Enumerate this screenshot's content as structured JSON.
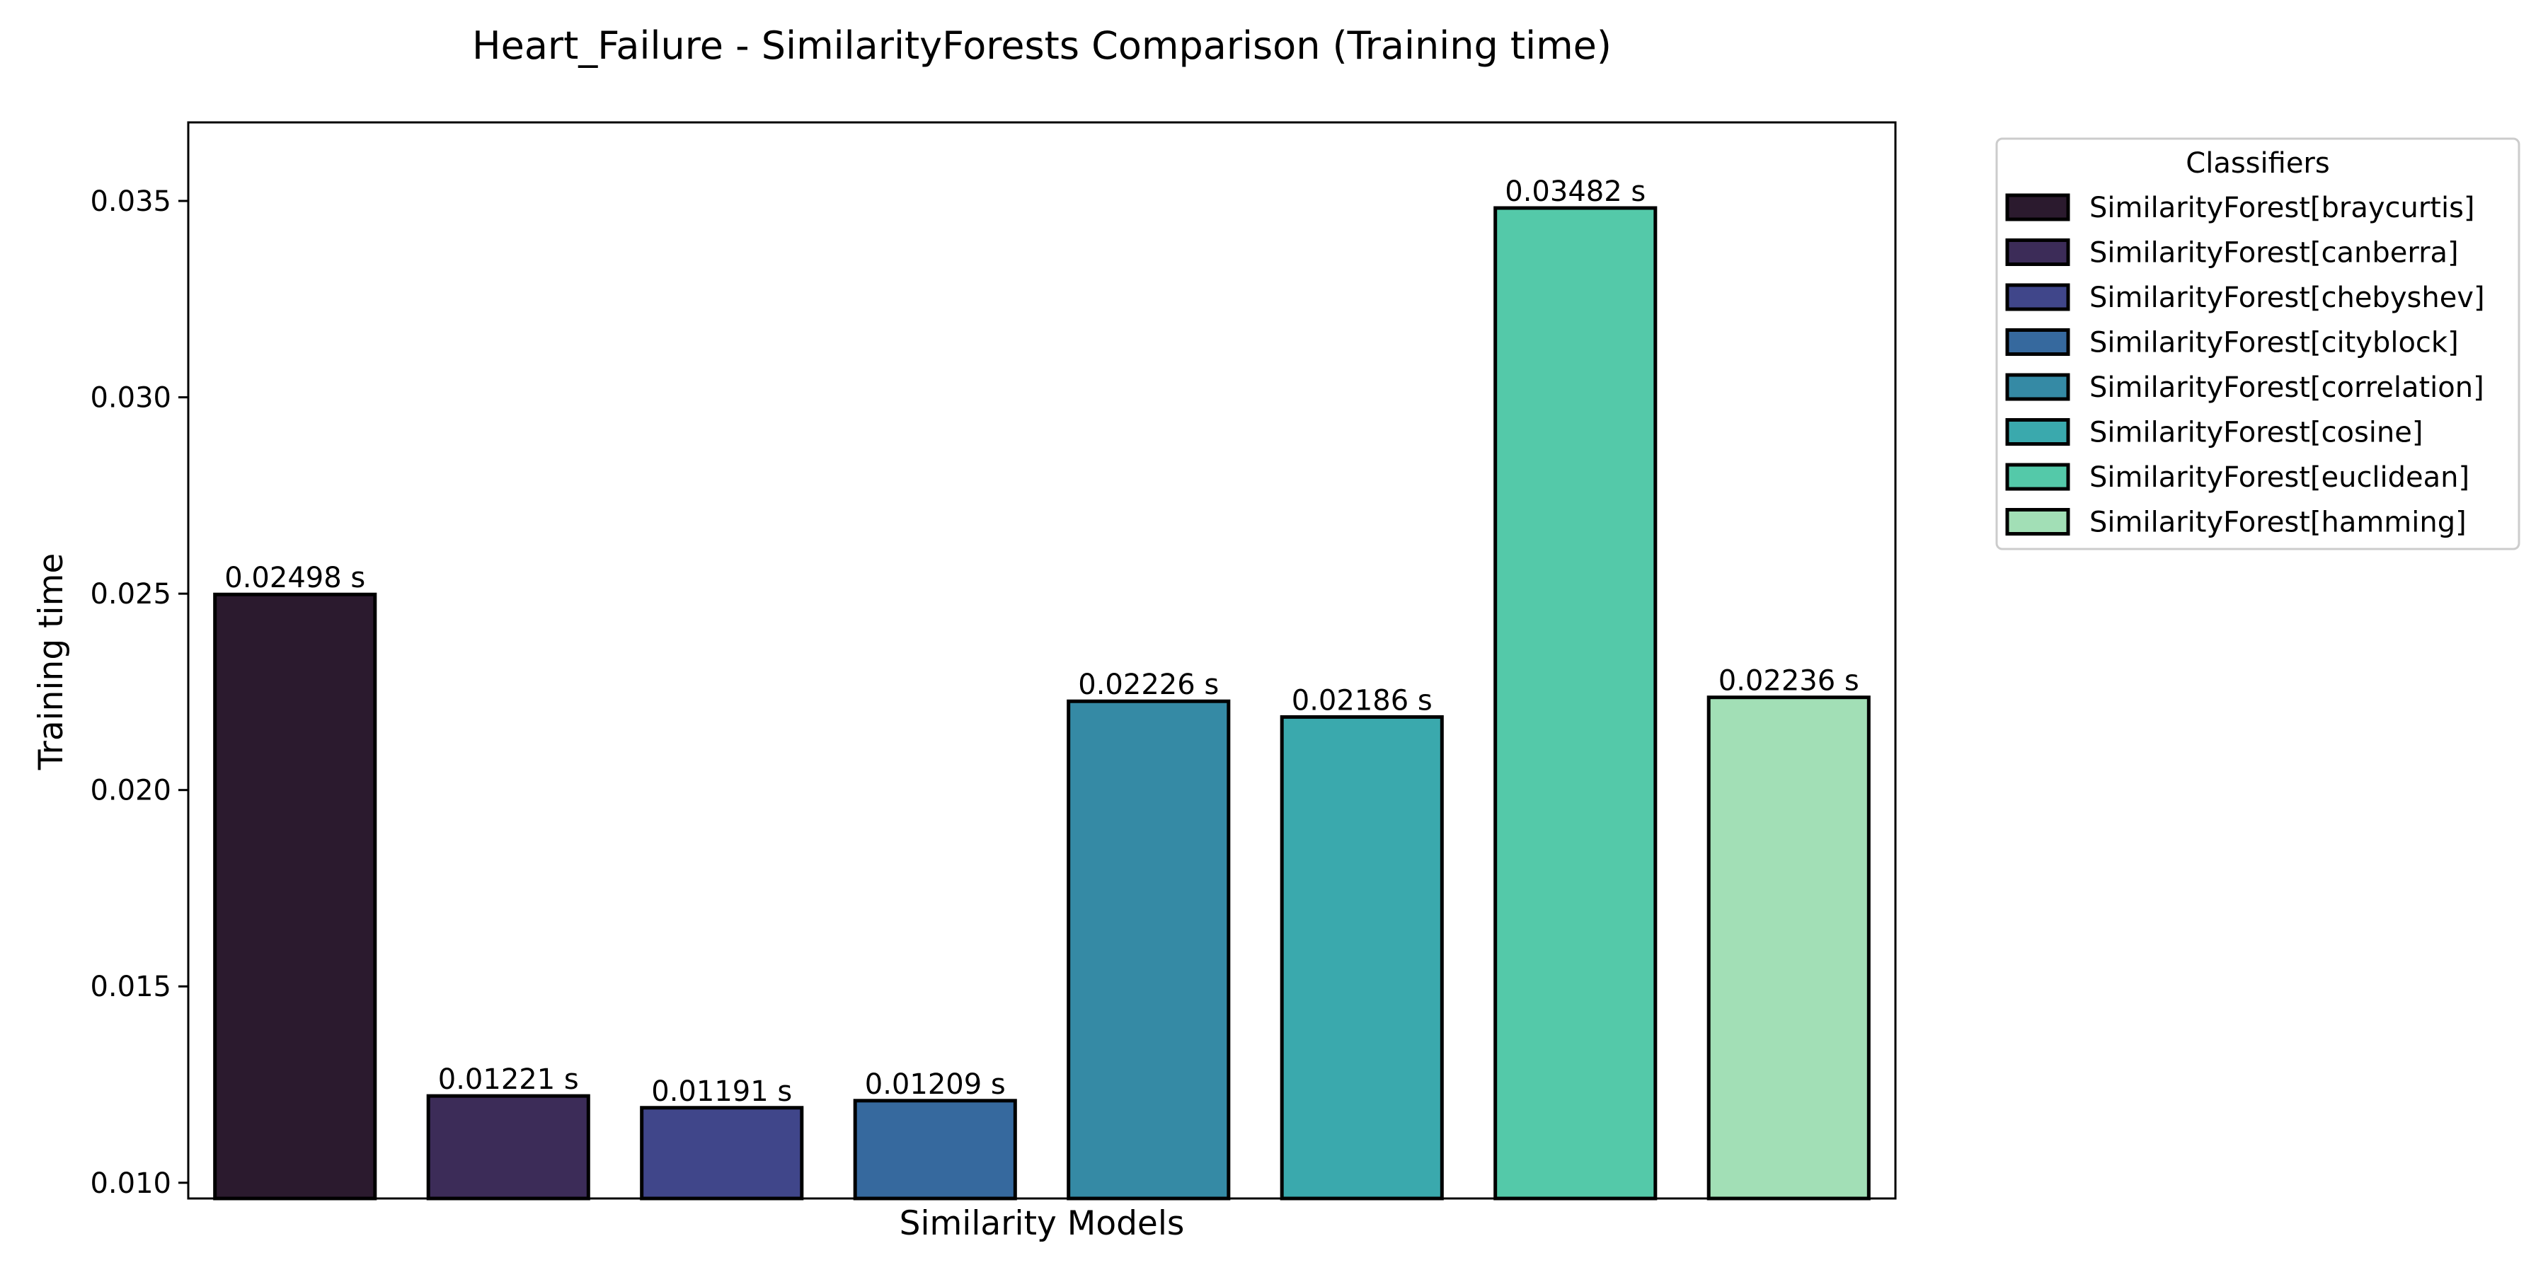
{
  "chart_data": {
    "type": "bar",
    "title": "Heart_Failure - SimilarityForests Comparison (Training time)",
    "xlabel": "Similarity Models",
    "ylabel": "Training time",
    "ylim": [
      0.0096,
      0.037
    ],
    "yticks": [
      "0.010",
      "0.015",
      "0.020",
      "0.025",
      "0.030",
      "0.035"
    ],
    "categories": [
      "SimilarityForest[braycurtis]",
      "SimilarityForest[canberra]",
      "SimilarityForest[chebyshev]",
      "SimilarityForest[cityblock]",
      "SimilarityForest[correlation]",
      "SimilarityForest[cosine]",
      "SimilarityForest[euclidean]",
      "SimilarityForest[hamming]"
    ],
    "values": [
      0.02498,
      0.01221,
      0.01191,
      0.01209,
      0.02226,
      0.02186,
      0.03482,
      0.02236
    ],
    "value_labels": [
      "0.02498 s",
      "0.01221 s",
      "0.01191 s",
      "0.01209 s",
      "0.02226 s",
      "0.02186 s",
      "0.03482 s",
      "0.02236 s"
    ],
    "colors": [
      "#2b1a2e",
      "#3c2c58",
      "#40468a",
      "#36699e",
      "#358aa5",
      "#3aa9ad",
      "#54c9a9",
      "#a2dfb6"
    ],
    "legend": {
      "title": "Classifiers",
      "placement": "outside-right-top"
    },
    "grid": false
  }
}
